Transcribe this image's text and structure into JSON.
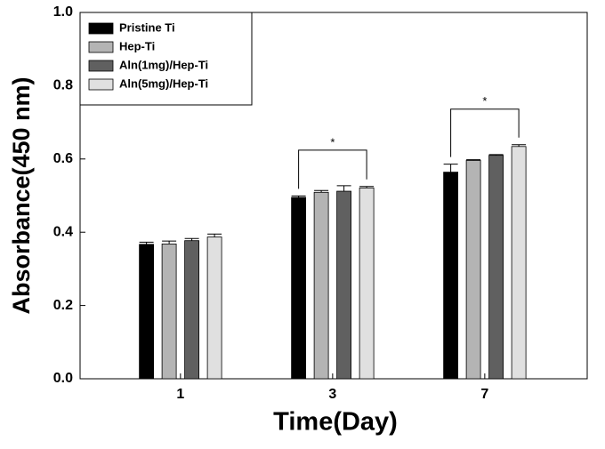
{
  "chart_data": {
    "type": "bar",
    "x_label": "Time(Day)",
    "y_label": "Absorbance(450 nm)",
    "categories": [
      "1",
      "3",
      "7"
    ],
    "series": [
      {
        "name": "Pristine Ti",
        "color": "#000000",
        "values": [
          0.367,
          0.495,
          0.564
        ],
        "errors": [
          0.006,
          0.004,
          0.022
        ]
      },
      {
        "name": "Hep-Ti",
        "color": "#b4b4b4",
        "values": [
          0.368,
          0.509,
          0.596
        ],
        "errors": [
          0.008,
          0.005,
          0.002
        ]
      },
      {
        "name": "Aln(1mg)/Hep-Ti",
        "color": "#606060",
        "values": [
          0.377,
          0.512,
          0.61
        ],
        "errors": [
          0.006,
          0.015,
          0.002
        ]
      },
      {
        "name": "Aln(5mg)/Hep-Ti",
        "color": "#e0e0e0",
        "values": [
          0.387,
          0.521,
          0.634
        ],
        "errors": [
          0.008,
          0.004,
          0.005
        ]
      }
    ],
    "ylim": [
      0,
      1
    ],
    "yticks": [
      {
        "value": 0,
        "label": "0.0"
      },
      {
        "value": 0.2,
        "label": "0.2"
      },
      {
        "value": 0.4,
        "label": "0.4"
      },
      {
        "value": 0.6,
        "label": "0.6"
      },
      {
        "value": 0.8,
        "label": "0.8"
      },
      {
        "value": 1,
        "label": "1.0"
      }
    ],
    "legend": "upper left",
    "annotations": [
      {
        "text": "*",
        "category": "3"
      },
      {
        "text": "*",
        "category": "7"
      }
    ]
  }
}
